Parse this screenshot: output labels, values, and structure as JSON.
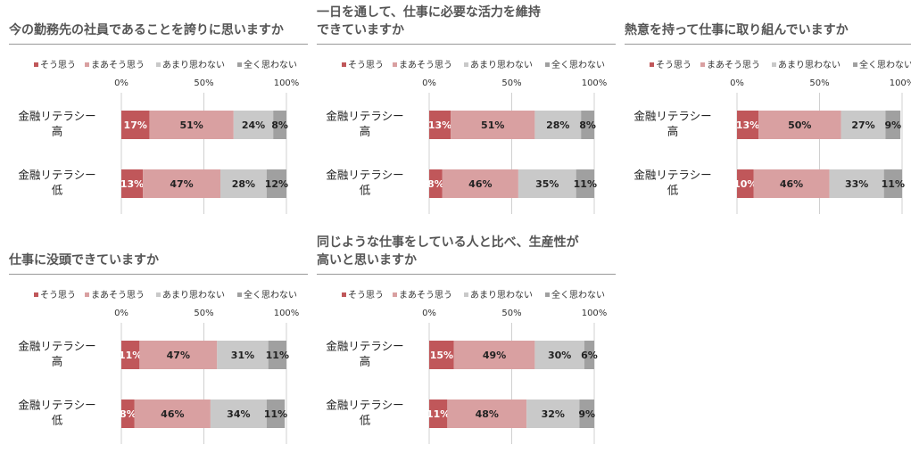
{
  "legend_labels": [
    "そう思う",
    "まあそう思う",
    "あまり思わない",
    "全く思わない"
  ],
  "colors": [
    "#c0575a",
    "#d9a0a1",
    "#c9c9c9",
    "#a0a0a0"
  ],
  "chart_data": [
    {
      "type": "bar",
      "orientation": "horizontal",
      "stacked": "percent",
      "title": "今の勤務先の社員であることを誇りに思いますか",
      "categories": [
        "金融リテラシー\n高",
        "金融リテラシー\n低"
      ],
      "x_ticks": [
        "0%",
        "50%",
        "100%"
      ],
      "xlim": [
        0,
        100
      ],
      "legend_position": "top",
      "series": [
        {
          "name": "そう思う",
          "values": [
            17,
            13
          ]
        },
        {
          "name": "まあそう思う",
          "values": [
            51,
            47
          ]
        },
        {
          "name": "あまり思わない",
          "values": [
            24,
            28
          ]
        },
        {
          "name": "全く思わない",
          "values": [
            8,
            12
          ]
        }
      ]
    },
    {
      "type": "bar",
      "orientation": "horizontal",
      "stacked": "percent",
      "title": "一日を通して、仕事に必要な活力を維持\nできていますか",
      "categories": [
        "金融リテラシー\n高",
        "金融リテラシー\n低"
      ],
      "x_ticks": [
        "0%",
        "50%",
        "100%"
      ],
      "xlim": [
        0,
        100
      ],
      "legend_position": "top",
      "series": [
        {
          "name": "そう思う",
          "values": [
            13,
            8
          ]
        },
        {
          "name": "まあそう思う",
          "values": [
            51,
            46
          ]
        },
        {
          "name": "あまり思わない",
          "values": [
            28,
            35
          ]
        },
        {
          "name": "全く思わない",
          "values": [
            8,
            11
          ]
        }
      ]
    },
    {
      "type": "bar",
      "orientation": "horizontal",
      "stacked": "percent",
      "title": "熱意を持って仕事に取り組んでいますか",
      "categories": [
        "金融リテラシー\n高",
        "金融リテラシー\n低"
      ],
      "x_ticks": [
        "0%",
        "50%",
        "100%"
      ],
      "xlim": [
        0,
        100
      ],
      "legend_position": "top",
      "series": [
        {
          "name": "そう思う",
          "values": [
            13,
            10
          ]
        },
        {
          "name": "まあそう思う",
          "values": [
            50,
            46
          ]
        },
        {
          "name": "あまり思わない",
          "values": [
            27,
            33
          ]
        },
        {
          "name": "全く思わない",
          "values": [
            9,
            11
          ]
        }
      ]
    },
    {
      "type": "bar",
      "orientation": "horizontal",
      "stacked": "percent",
      "title": "仕事に没頭できていますか",
      "categories": [
        "金融リテラシー\n高",
        "金融リテラシー\n低"
      ],
      "x_ticks": [
        "0%",
        "50%",
        "100%"
      ],
      "xlim": [
        0,
        100
      ],
      "legend_position": "top",
      "series": [
        {
          "name": "そう思う",
          "values": [
            11,
            8
          ]
        },
        {
          "name": "まあそう思う",
          "values": [
            47,
            46
          ]
        },
        {
          "name": "あまり思わない",
          "values": [
            31,
            34
          ]
        },
        {
          "name": "全く思わない",
          "values": [
            11,
            11
          ]
        }
      ]
    },
    {
      "type": "bar",
      "orientation": "horizontal",
      "stacked": "percent",
      "title": "同じような仕事をしている人と比べ、生産性が\n高いと思いますか",
      "categories": [
        "金融リテラシー\n高",
        "金融リテラシー\n低"
      ],
      "x_ticks": [
        "0%",
        "50%",
        "100%"
      ],
      "xlim": [
        0,
        100
      ],
      "legend_position": "top",
      "series": [
        {
          "name": "そう思う",
          "values": [
            15,
            11
          ]
        },
        {
          "name": "まあそう思う",
          "values": [
            49,
            48
          ]
        },
        {
          "name": "あまり思わない",
          "values": [
            30,
            32
          ]
        },
        {
          "name": "全く思わない",
          "values": [
            6,
            9
          ]
        }
      ]
    }
  ]
}
